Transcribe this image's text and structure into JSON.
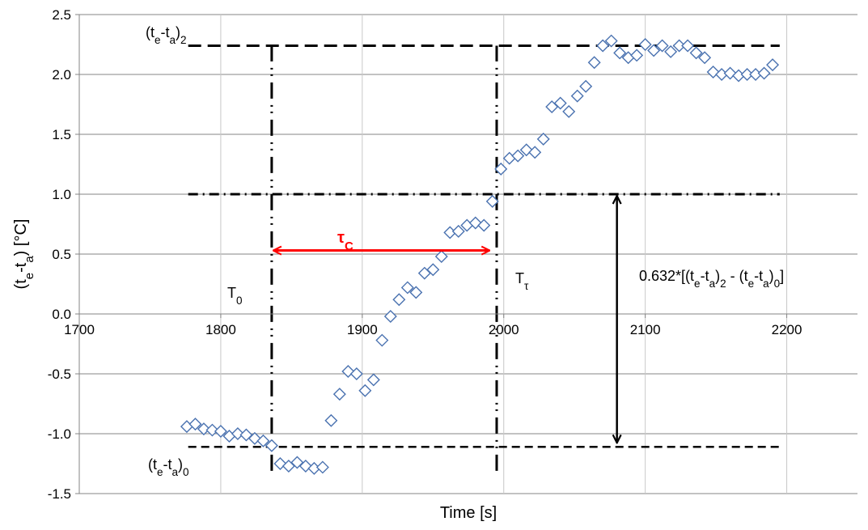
{
  "chart_data": {
    "type": "scatter",
    "xlabel": "Time [s]",
    "ylabel": [
      "(t",
      "e",
      "-t",
      "a",
      ") [°C]"
    ],
    "xlim": [
      1700,
      2250
    ],
    "ylim": [
      -1.5,
      2.5
    ],
    "x_tick_labels": [
      "1700",
      "1800",
      "1900",
      "2000",
      "2100",
      "2200"
    ],
    "y_tick_labels": [
      "-1.5",
      "-1.0",
      "-0.5",
      "0.0",
      "0.5",
      "1.0",
      "1.5",
      "2.0",
      "2.5"
    ],
    "x_ticks": [
      1700,
      1800,
      1900,
      2000,
      2100,
      2200
    ],
    "y_ticks": [
      -1.5,
      -1.0,
      -0.5,
      0.0,
      0.5,
      1.0,
      1.5,
      2.0,
      2.5
    ],
    "grid": true,
    "marker": "diamond-open",
    "marker_color": "#4a72b0",
    "series": [
      {
        "x": [
          1776,
          1782,
          1788,
          1794,
          1800,
          1806,
          1812,
          1818,
          1824,
          1830,
          1836,
          1842,
          1848,
          1854,
          1860,
          1866,
          1872,
          1878,
          1884,
          1890,
          1896,
          1902,
          1908,
          1914,
          1920,
          1926,
          1932,
          1938,
          1944,
          1950,
          1956,
          1962,
          1968,
          1974,
          1980,
          1986,
          1992,
          1998,
          2004,
          2010,
          2016,
          2022,
          2028,
          2034,
          2040,
          2046,
          2052,
          2058,
          2064,
          2070,
          2076,
          2082,
          2088,
          2094,
          2100,
          2106,
          2112,
          2118,
          2124,
          2130,
          2136,
          2142,
          2148,
          2154,
          2160,
          2166,
          2172,
          2178,
          2184,
          2190
        ],
        "y": [
          -0.94,
          -0.92,
          -0.96,
          -0.97,
          -0.98,
          -1.02,
          -1.0,
          -1.01,
          -1.04,
          -1.06,
          -1.1,
          -1.25,
          -1.27,
          -1.24,
          -1.27,
          -1.29,
          -1.28,
          -0.89,
          -0.67,
          -0.48,
          -0.5,
          -0.64,
          -0.55,
          -0.22,
          -0.02,
          0.12,
          0.22,
          0.18,
          0.34,
          0.37,
          0.48,
          0.68,
          0.69,
          0.74,
          0.76,
          0.74,
          0.94,
          1.21,
          1.3,
          1.32,
          1.37,
          1.35,
          1.46,
          1.73,
          1.76,
          1.69,
          1.82,
          1.9,
          2.1,
          2.24,
          2.28,
          2.18,
          2.14,
          2.16,
          2.25,
          2.2,
          2.24,
          2.19,
          2.24,
          2.24,
          2.18,
          2.14,
          2.02,
          2.0,
          2.01,
          1.99,
          2.0,
          2.0,
          2.01,
          2.08
        ]
      }
    ],
    "reference_lines": {
      "upper_level": 2.24,
      "lower_level": -1.11,
      "level_632": 1.0,
      "t0": 1836,
      "ttau": 1995,
      "vertical_span": [
        -1.31,
        2.24
      ],
      "horizontal_span": [
        1777,
        2195
      ]
    },
    "tau_arrow": {
      "x_from": 1836,
      "x_to": 1990,
      "y": 0.53
    },
    "amplitude_arrow": {
      "x": 2080,
      "y_from": -1.09,
      "y_to": 1.0
    },
    "annotations": {
      "upper_label": [
        "(t",
        "e",
        "-t",
        "a",
        ")",
        "2"
      ],
      "lower_label": [
        "(t",
        "e",
        "-t",
        "a",
        ")",
        "0"
      ],
      "t0_label": [
        "T",
        "0"
      ],
      "ttau_label": [
        "T",
        "τ"
      ],
      "tau_label": [
        "τ",
        "C"
      ],
      "amplitude_label": [
        "0.632*[(t",
        "e",
        "-t",
        "a",
        ")",
        "2",
        " - (t",
        "e",
        "-t",
        "a",
        ")",
        "0",
        "]"
      ]
    },
    "colors": {
      "axis": "#868686",
      "grid": "#868686",
      "ref_lines": "#000000",
      "tau_arrow": "#ff0000"
    }
  }
}
